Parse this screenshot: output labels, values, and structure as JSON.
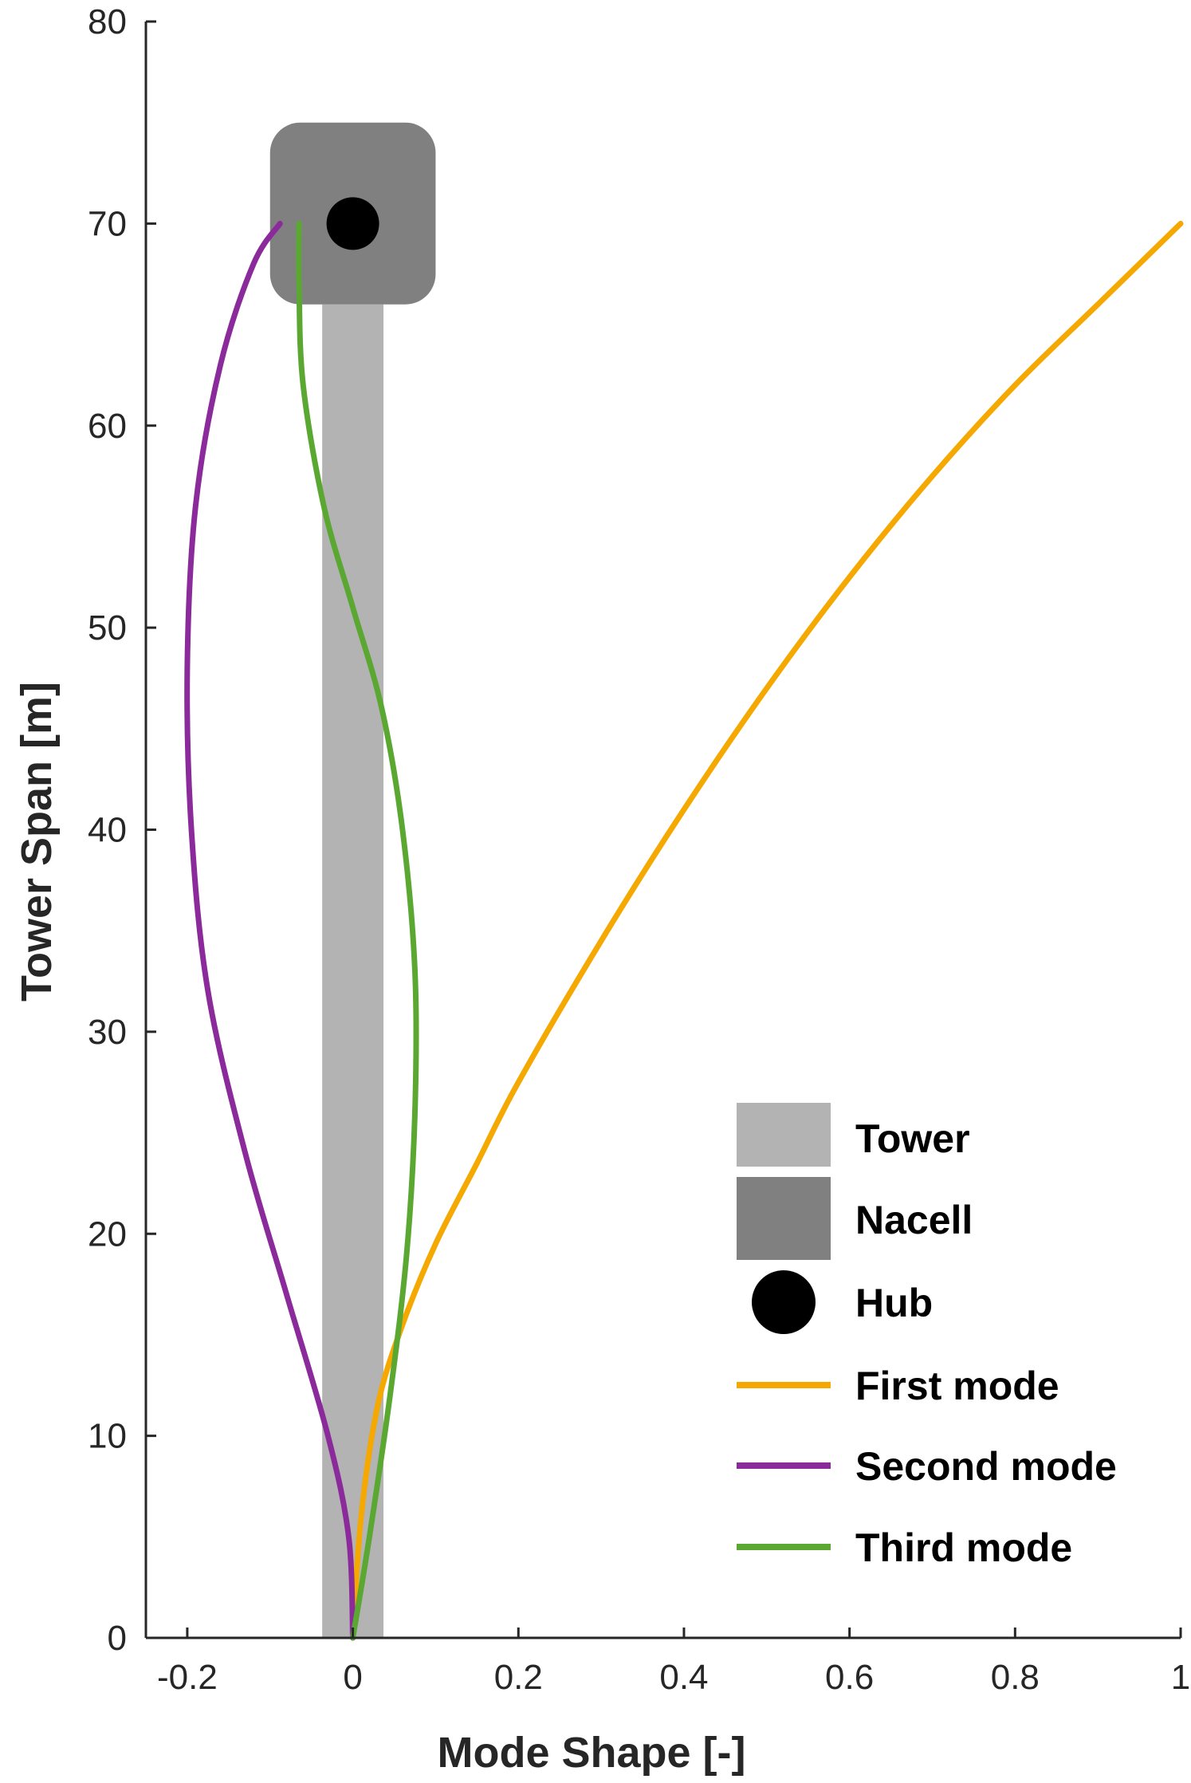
{
  "chart_data": {
    "type": "line",
    "title": "",
    "xlabel": "Mode Shape [-]",
    "ylabel": "Tower Span [m]",
    "xlim": [
      -0.25,
      1.0
    ],
    "ylim": [
      0,
      80
    ],
    "xticks": [
      -0.2,
      0,
      0.2,
      0.4,
      0.6,
      0.8,
      1
    ],
    "xtick_labels": [
      "-0.2",
      "0",
      "0.2",
      "0.4",
      "0.6",
      "0.8",
      "1"
    ],
    "yticks": [
      0,
      10,
      20,
      30,
      40,
      50,
      60,
      70,
      80
    ],
    "ytick_labels": [
      "0",
      "10",
      "20",
      "30",
      "40",
      "50",
      "60",
      "70",
      "80"
    ],
    "grid": false,
    "legend_position": "lower-right",
    "structure": {
      "tower": {
        "name": "Tower",
        "x_range": [
          -0.037,
          0.037
        ],
        "y_range": [
          0,
          66
        ],
        "color": "#b3b3b3"
      },
      "nacelle": {
        "name": "Nacell",
        "x_range": [
          -0.1,
          0.1
        ],
        "y_range": [
          66,
          75
        ],
        "color": "#808080"
      },
      "hub": {
        "name": "Hub",
        "x": 0,
        "y": 70,
        "color": "#000000"
      }
    },
    "series": [
      {
        "name": "First mode",
        "color": "#f5a800",
        "x": [
          0,
          0.01,
          0.03,
          0.06,
          0.1,
          0.15,
          0.2,
          0.3,
          0.4,
          0.5,
          0.6,
          0.7,
          0.8,
          0.9,
          1.0
        ],
        "y": [
          0,
          6,
          11.5,
          15.5,
          19.5,
          23.5,
          27.5,
          34.5,
          41,
          47,
          52.5,
          57.5,
          62,
          66,
          70
        ]
      },
      {
        "name": "Second mode",
        "color": "#8b2a9a",
        "x": [
          0,
          -0.005,
          -0.03,
          -0.08,
          -0.13,
          -0.175,
          -0.195,
          -0.2,
          -0.19,
          -0.16,
          -0.12,
          -0.088
        ],
        "y": [
          0,
          5,
          10,
          17,
          24,
          32,
          40,
          48,
          56,
          63,
          68,
          70
        ]
      },
      {
        "name": "Third mode",
        "color": "#5aa832",
        "x": [
          0,
          0.02,
          0.045,
          0.065,
          0.075,
          0.075,
          0.06,
          0.035,
          0.0,
          -0.035,
          -0.06,
          -0.065,
          -0.065
        ],
        "y": [
          0,
          5,
          12,
          19,
          26,
          33,
          40,
          46,
          51,
          56,
          62,
          67,
          70
        ]
      }
    ]
  }
}
